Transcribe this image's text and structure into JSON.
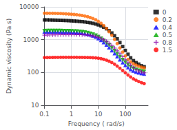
{
  "chart_data": {
    "type": "scatter",
    "xlabel": "Frequency ( rad/s)",
    "ylabel": "Dynamic viscosity (Pa s)",
    "log": true,
    "grid": true,
    "legend": "upper right",
    "xlim": [
      0.1,
      700
    ],
    "ylim": [
      10,
      10000
    ],
    "xticks": [
      0.1,
      1,
      10,
      100
    ],
    "yticks": [
      10,
      100,
      1000,
      10000
    ],
    "x": [
      0.1,
      0.126,
      0.158,
      0.2,
      0.25,
      0.316,
      0.4,
      0.5,
      0.63,
      0.8,
      1.0,
      1.26,
      1.58,
      2.0,
      2.5,
      3.16,
      4.0,
      5.0,
      6.3,
      8.0,
      10,
      12.6,
      15.8,
      20,
      25,
      31.6,
      40,
      50,
      63,
      80,
      100,
      126,
      158,
      200,
      250,
      316,
      400,
      500
    ],
    "series": [
      {
        "name": "0",
        "color": "black",
        "marker": "square",
        "values": [
          4000,
          4000,
          3980,
          3960,
          3940,
          3920,
          3900,
          3870,
          3840,
          3800,
          3750,
          3700,
          3660,
          3600,
          3540,
          3470,
          3380,
          3280,
          3150,
          3000,
          2820,
          2620,
          2400,
          2150,
          1880,
          1600,
          1320,
          1060,
          820,
          620,
          470,
          360,
          280,
          230,
          200,
          180,
          160,
          150
        ]
      },
      {
        "name": "0.2",
        "color": "#FF6600",
        "marker": "circle",
        "values": [
          6400,
          6400,
          6380,
          6360,
          6340,
          6300,
          6260,
          6200,
          6140,
          6060,
          5980,
          5880,
          5760,
          5620,
          5460,
          5260,
          5020,
          4740,
          4420,
          4040,
          3620,
          3160,
          2680,
          2200,
          1760,
          1360,
          1020,
          760,
          560,
          420,
          320,
          250,
          210,
          185,
          168,
          155,
          145,
          138
        ]
      },
      {
        "name": "0.4",
        "color": "blue",
        "marker": "triangle",
        "values": [
          1750,
          1760,
          1760,
          1760,
          1758,
          1755,
          1750,
          1745,
          1738,
          1728,
          1715,
          1698,
          1676,
          1648,
          1612,
          1566,
          1506,
          1432,
          1340,
          1230,
          1104,
          968,
          830,
          700,
          580,
          474,
          384,
          308,
          248,
          202,
          168,
          143,
          125,
          113,
          105,
          99,
          95,
          91
        ]
      },
      {
        "name": "0.5",
        "color": "#00aa00",
        "marker": "triangle-down",
        "values": [
          1850,
          1860,
          1860,
          1862,
          1862,
          1860,
          1858,
          1854,
          1848,
          1840,
          1828,
          1812,
          1792,
          1764,
          1728,
          1680,
          1620,
          1546,
          1454,
          1344,
          1218,
          1082,
          944,
          806,
          676,
          558,
          454,
          368,
          298,
          244,
          202,
          170,
          148,
          133,
          122,
          115,
          110,
          106
        ]
      },
      {
        "name": "0.8",
        "color": "#8800aa",
        "marker": "plus",
        "values": [
          1380,
          1390,
          1398,
          1404,
          1410,
          1416,
          1420,
          1424,
          1428,
          1430,
          1432,
          1432,
          1430,
          1426,
          1418,
          1404,
          1382,
          1350,
          1306,
          1248,
          1176,
          1090,
          992,
          886,
          776,
          665,
          558,
          460,
          374,
          302,
          244,
          200,
          166,
          142,
          125,
          112,
          104,
          98
        ]
      },
      {
        "name": "1.5",
        "color": "red",
        "marker": "circle",
        "values": [
          285,
          286,
          287,
          288,
          289,
          289,
          290,
          290,
          290,
          290,
          290,
          290,
          290,
          289,
          289,
          288,
          287,
          285,
          283,
          279,
          273,
          264,
          252,
          238,
          221,
          201,
          179,
          157,
          135,
          115,
          98,
          84,
          73,
          64,
          58,
          53,
          49,
          46
        ]
      }
    ]
  }
}
